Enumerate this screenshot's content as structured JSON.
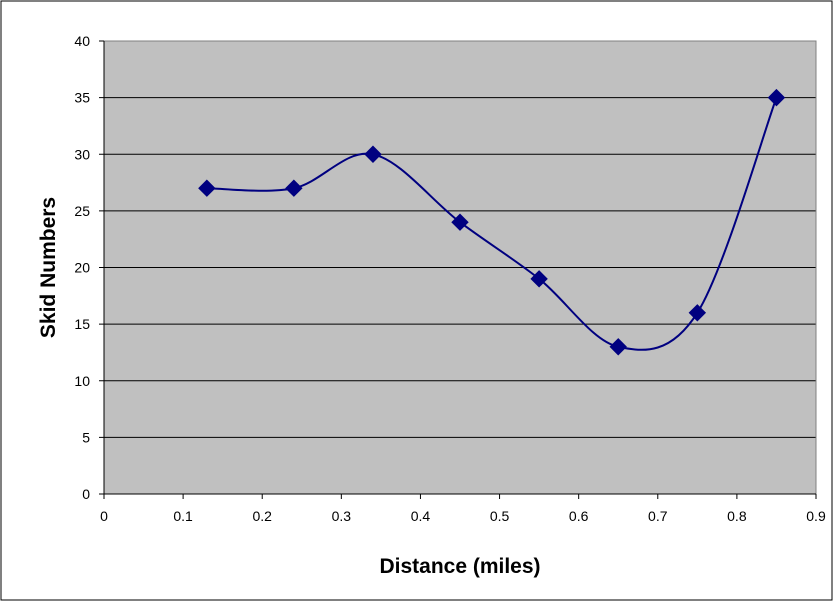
{
  "chart_data": {
    "type": "line",
    "smooth": true,
    "title": "",
    "xlabel": "Distance (miles)",
    "ylabel": "Skid Numbers",
    "xlim": [
      0,
      0.9
    ],
    "ylim": [
      0,
      40
    ],
    "xticks": [
      "0",
      "0.1",
      "0.2",
      "0.3",
      "0.4",
      "0.5",
      "0.6",
      "0.7",
      "0.8",
      "0.9"
    ],
    "yticks": [
      "0",
      "5",
      "10",
      "15",
      "20",
      "25",
      "30",
      "35",
      "40"
    ],
    "grid": "horizontal",
    "legend": "none",
    "series": [
      {
        "x": [
          0.13,
          0.24,
          0.34,
          0.45,
          0.55,
          0.65,
          0.75,
          0.85
        ],
        "y": [
          27,
          27,
          30,
          24,
          19,
          13,
          16,
          35
        ],
        "marker": "diamond"
      }
    ],
    "colors": {
      "plot_background": "#c0c0c0",
      "series": "#000080",
      "gridline": "#000000",
      "frame": "#000000"
    }
  }
}
